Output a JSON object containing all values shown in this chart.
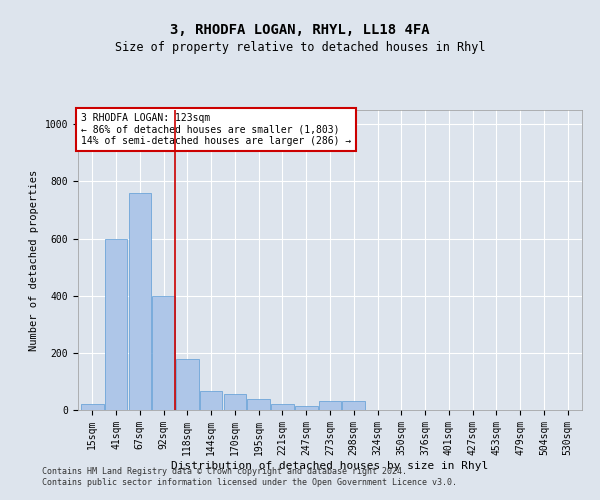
{
  "title": "3, RHODFA LOGAN, RHYL, LL18 4FA",
  "subtitle": "Size of property relative to detached houses in Rhyl",
  "xlabel": "Distribution of detached houses by size in Rhyl",
  "ylabel": "Number of detached properties",
  "bar_color": "#aec6e8",
  "bar_edge_color": "#5b9bd5",
  "vline_color": "#cc0000",
  "annotation_text": "3 RHODFA LOGAN: 123sqm\n← 86% of detached houses are smaller (1,803)\n14% of semi-detached houses are larger (286) →",
  "categories": [
    "15sqm",
    "41sqm",
    "67sqm",
    "92sqm",
    "118sqm",
    "144sqm",
    "170sqm",
    "195sqm",
    "221sqm",
    "247sqm",
    "273sqm",
    "298sqm",
    "324sqm",
    "350sqm",
    "376sqm",
    "401sqm",
    "427sqm",
    "453sqm",
    "479sqm",
    "504sqm",
    "530sqm"
  ],
  "values": [
    20,
    600,
    760,
    400,
    180,
    65,
    55,
    40,
    20,
    15,
    30,
    30,
    0,
    0,
    0,
    0,
    0,
    0,
    0,
    0,
    0
  ],
  "vline_position": 3.5,
  "ylim": [
    0,
    1050
  ],
  "yticks": [
    0,
    200,
    400,
    600,
    800,
    1000
  ],
  "footer": "Contains HM Land Registry data © Crown copyright and database right 2024.\nContains public sector information licensed under the Open Government Licence v3.0.",
  "background_color": "#dde4ed",
  "plot_bg_color": "#dde4ed",
  "grid_color": "#ffffff",
  "title_fontsize": 10,
  "subtitle_fontsize": 8.5,
  "annotation_fontsize": 7,
  "footer_fontsize": 6,
  "tick_fontsize": 7,
  "ylabel_fontsize": 7.5,
  "xlabel_fontsize": 8
}
